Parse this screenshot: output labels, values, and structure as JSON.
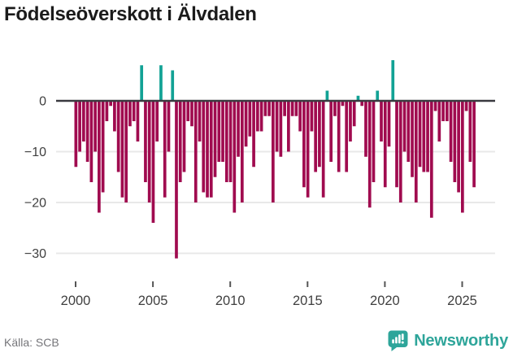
{
  "title": "Födelseöverskott i Älvdalen",
  "footer": {
    "source": "Källa: SCB",
    "brand_name": "Newsworthy",
    "brand_icon": "bar-chart-badge-icon"
  },
  "colors": {
    "positive_bar": "#12a295",
    "negative_bar": "#a00b4f",
    "zero_axis": "#3a3a40",
    "gridline": "#e8e8e8",
    "tick_label": "#3f3f3f",
    "source_text": "#76767a",
    "brand_teal": "#2ea59a",
    "background": "#ffffff"
  },
  "chart_data": {
    "type": "bar",
    "title": "Födelseöverskott i Älvdalen",
    "frequency": "quarterly",
    "period_start": "2000 Q1",
    "period_end": "2025 Q4",
    "grid": "horizontal",
    "legend": "none",
    "ylim": [
      -33,
      9
    ],
    "y_ticks": [
      0,
      -10,
      -20,
      -30
    ],
    "y_tick_labels": [
      "0",
      "−10",
      "−20",
      "−30"
    ],
    "x_tick_years": [
      2000,
      2005,
      2010,
      2015,
      2020,
      2025
    ],
    "x_tick_labels": [
      "2000",
      "2005",
      "2010",
      "2015",
      "2020",
      "2025"
    ],
    "series_name": "Födelseöverskott (kvartal)",
    "values_by_year": {
      "2000": [
        -13,
        -10,
        -8,
        -12
      ],
      "2001": [
        -16,
        -10,
        -22,
        -18
      ],
      "2002": [
        -4,
        -1,
        -6,
        -14
      ],
      "2003": [
        -19,
        -20,
        -5,
        -4
      ],
      "2004": [
        -8,
        7,
        -16,
        -20
      ],
      "2005": [
        -24,
        -8,
        7,
        -19
      ],
      "2006": [
        -10,
        6,
        -31,
        -16
      ],
      "2007": [
        -14,
        -4,
        -5,
        -20
      ],
      "2008": [
        -8,
        -18,
        -19,
        -19
      ],
      "2009": [
        -15,
        -12,
        -12,
        -16
      ],
      "2010": [
        -16,
        -22,
        -11,
        -20
      ],
      "2011": [
        -9,
        -7,
        -13,
        -6
      ],
      "2012": [
        -6,
        -3,
        -3,
        -20
      ],
      "2013": [
        -10,
        -11,
        -3,
        -10
      ],
      "2014": [
        -3,
        -3,
        -6,
        -17
      ],
      "2015": [
        -19,
        -6,
        -14,
        -13
      ],
      "2016": [
        -19,
        2,
        -12,
        -3
      ],
      "2017": [
        -14,
        -1,
        -14,
        -8
      ],
      "2018": [
        -5,
        1,
        -1,
        -11
      ],
      "2019": [
        -21,
        -16,
        2,
        -8
      ],
      "2020": [
        -17,
        -9,
        8,
        -17
      ],
      "2021": [
        -20,
        -10,
        -12,
        -15
      ],
      "2022": [
        -20,
        -13,
        -14,
        -14
      ],
      "2023": [
        -23,
        -2,
        -8,
        -4
      ],
      "2024": [
        -4,
        -12,
        -16,
        -18
      ],
      "2025": [
        -22,
        -2,
        -12,
        -17
      ]
    }
  }
}
